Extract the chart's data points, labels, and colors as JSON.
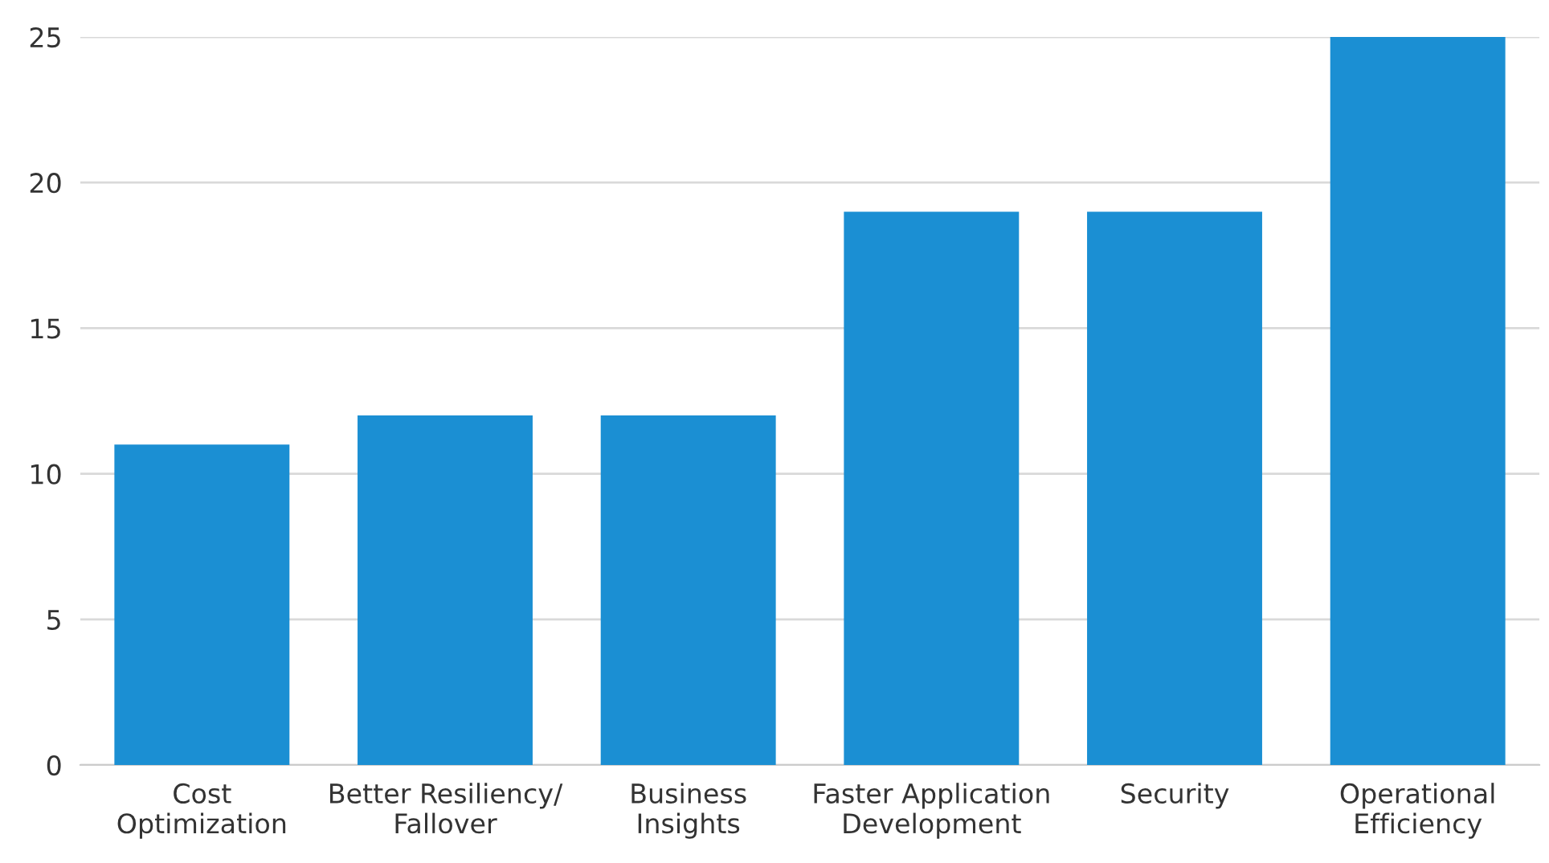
{
  "chart_data": {
    "type": "bar",
    "categories": [
      "Cost\nOptimization",
      "Better Resiliency/\nFallover",
      "Business\nInsights",
      "Faster Application\nDevelopment",
      "Security",
      "Operational\nEfficiency"
    ],
    "values": [
      11,
      12,
      12,
      19,
      19,
      25
    ],
    "color": "#1b8fd3",
    "ylim": [
      0,
      25
    ],
    "yticks": [
      0,
      5,
      10,
      15,
      20,
      25
    ],
    "grid": "y"
  }
}
